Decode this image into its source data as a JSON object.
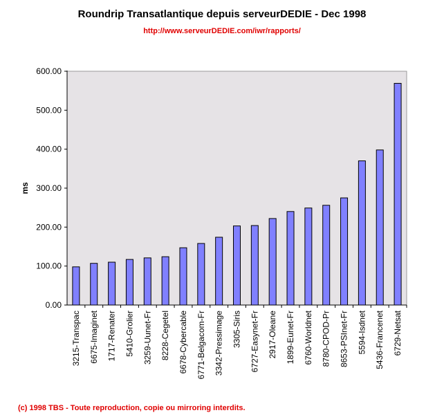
{
  "title": "Roundrip Transatlantique depuis serveurDEDIE - Dec 1998",
  "url": "http://www.serveurDEDIE.com/iwr/rapports/",
  "copyright": "(c) 1998 TBS - Toute reproduction, copie ou mirroring interdits.",
  "colors": {
    "bar": "#8080ff",
    "plot_bg": "#e6e3e6",
    "title_red": "#e00000"
  },
  "chart_data": {
    "type": "bar",
    "title": "Roundrip Transatlantique depuis serveurDEDIE - Dec 1998",
    "xlabel": "",
    "ylabel": "ms",
    "ylim": [
      0,
      600
    ],
    "yticks": [
      "0.00",
      "100.00",
      "200.00",
      "300.00",
      "400.00",
      "500.00",
      "600.00"
    ],
    "grid": false,
    "categories": [
      "3215-Transpac",
      "6675-Imaginet",
      "1717-Renater",
      "5410-Grolier",
      "3259-Uunet-Fr",
      "8228-Cegetel",
      "6678-Cybercable",
      "6771-Belgacom-Fr",
      "3342-Pressimage",
      "3305-Siris",
      "6727-Easynet-Fr",
      "2917-Oleane",
      "1899-Eunet-Fr",
      "6760-Worldnet",
      "8780-CPOD-Pr",
      "8653-PSInet-Fr",
      "5594-Isdnet",
      "5436-Francenet",
      "6729-Netsat"
    ],
    "values": [
      98,
      107,
      110,
      117,
      121,
      124,
      147,
      158,
      174,
      203,
      204,
      222,
      240,
      249,
      256,
      275,
      370,
      398,
      569
    ]
  }
}
